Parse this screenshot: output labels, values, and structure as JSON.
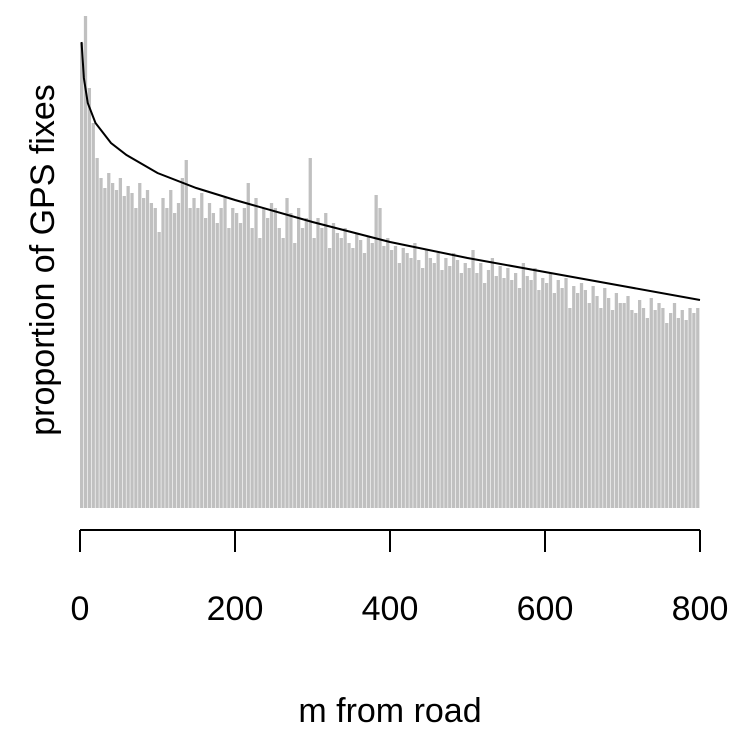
{
  "chart_data": {
    "type": "histogram",
    "xlabel": "m from road",
    "ylabel": "proportion of GPS fixes",
    "xlim": [
      0,
      800
    ],
    "ylim": [
      0,
      500
    ],
    "xticks": [
      0,
      200,
      400,
      600,
      800
    ],
    "color": "#c0c0c0",
    "bins": [
      0,
      5,
      10,
      15,
      20,
      25,
      30,
      35,
      40,
      45,
      50,
      55,
      60,
      65,
      70,
      75,
      80,
      85,
      90,
      95,
      100,
      105,
      110,
      115,
      120,
      125,
      130,
      135,
      140,
      145,
      150,
      155,
      160,
      165,
      170,
      175,
      180,
      185,
      190,
      195,
      200,
      205,
      210,
      215,
      220,
      225,
      230,
      235,
      240,
      245,
      250,
      255,
      260,
      265,
      270,
      275,
      280,
      285,
      290,
      295,
      300,
      305,
      310,
      315,
      320,
      325,
      330,
      335,
      340,
      345,
      350,
      355,
      360,
      365,
      370,
      375,
      380,
      385,
      390,
      395,
      400,
      405,
      410,
      415,
      420,
      425,
      430,
      435,
      440,
      445,
      450,
      455,
      460,
      465,
      470,
      475,
      480,
      485,
      490,
      495,
      500,
      505,
      510,
      515,
      520,
      525,
      530,
      535,
      540,
      545,
      550,
      555,
      560,
      565,
      570,
      575,
      580,
      585,
      590,
      595,
      600,
      605,
      610,
      615,
      620,
      625,
      630,
      635,
      640,
      645,
      650,
      655,
      660,
      665,
      670,
      675,
      680,
      685,
      690,
      695,
      700,
      705,
      710,
      715,
      720,
      725,
      730,
      735,
      740,
      745,
      750,
      755,
      760,
      765,
      770,
      775,
      780,
      785,
      790,
      795,
      800
    ],
    "values": [
      465,
      492,
      420,
      385,
      350,
      330,
      320,
      335,
      325,
      318,
      330,
      312,
      322,
      315,
      300,
      325,
      310,
      318,
      305,
      300,
      276,
      310,
      300,
      318,
      295,
      305,
      330,
      348,
      300,
      310,
      300,
      315,
      290,
      305,
      295,
      285,
      300,
      310,
      280,
      300,
      295,
      285,
      300,
      325,
      280,
      310,
      270,
      300,
      290,
      305,
      300,
      280,
      270,
      310,
      295,
      265,
      300,
      280,
      290,
      350,
      270,
      290,
      280,
      295,
      260,
      285,
      275,
      270,
      280,
      265,
      260,
      275,
      268,
      255,
      272,
      265,
      313,
      300,
      262,
      270,
      258,
      262,
      245,
      260,
      255,
      250,
      265,
      248,
      240,
      258,
      250,
      245,
      255,
      238,
      250,
      242,
      255,
      248,
      235,
      245,
      240,
      258,
      235,
      245,
      225,
      238,
      250,
      232,
      242,
      230,
      240,
      228,
      235,
      220,
      245,
      232,
      228,
      240,
      218,
      230,
      225,
      235,
      215,
      228,
      220,
      230,
      200,
      222,
      215,
      225,
      218,
      205,
      222,
      212,
      200,
      220,
      210,
      198,
      215,
      205,
      205,
      212,
      198,
      195,
      208,
      200,
      190,
      210,
      198,
      205,
      200,
      185,
      195,
      205,
      190,
      198,
      188,
      200,
      195,
      200
    ],
    "curve": {
      "color": "#000000",
      "x": [
        2,
        5,
        10,
        20,
        40,
        60,
        100,
        150,
        200,
        300,
        400,
        500,
        600,
        700,
        800
      ],
      "values": [
        466,
        430,
        405,
        385,
        365,
        353,
        335,
        320,
        308,
        286,
        266,
        250,
        236,
        222,
        208
      ]
    }
  }
}
